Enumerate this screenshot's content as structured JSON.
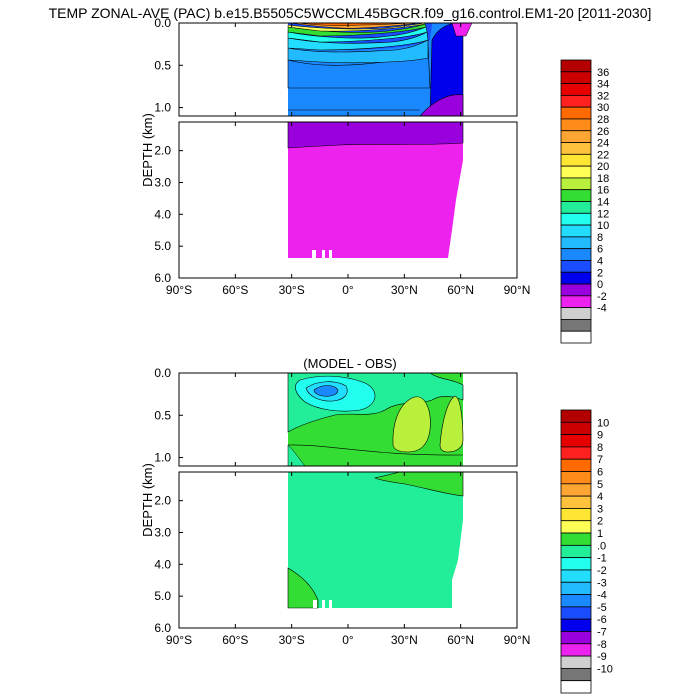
{
  "title": "TEMP ZONAL-AVE (PAC) b.e15.B5505C5WCCML45BGCR.f09_g16.control.EM1-20 [2011-2030]",
  "chart_data": [
    {
      "type": "contour",
      "title": "",
      "ylabel": "DEPTH (km)",
      "x_ticks": [
        "90°S",
        "60°S",
        "30°S",
        "0°",
        "30°N",
        "60°N",
        "90°N"
      ],
      "x_tick_values": [
        -90,
        -60,
        -30,
        0,
        30,
        60,
        90
      ],
      "y_ticks_upper": [
        "0.0",
        "0.5",
        "1.0"
      ],
      "y_ticks_upper_values": [
        0.0,
        0.5,
        1.0
      ],
      "y_ticks_lower": [
        "2.0",
        "3.0",
        "4.0",
        "5.0",
        "6.0"
      ],
      "y_ticks_lower_values": [
        2.0,
        3.0,
        4.0,
        5.0,
        6.0
      ],
      "xlim": [
        -90,
        90
      ],
      "ylim_upper": [
        0.0,
        1.1
      ],
      "ylim_lower": [
        1.1,
        6.0
      ],
      "colorbar_labels": [
        "36",
        "34",
        "32",
        "30",
        "28",
        "26",
        "24",
        "22",
        "20",
        "18",
        "16",
        "14",
        "12",
        "10",
        "8",
        "6",
        "4",
        "2",
        "0",
        "-2",
        "-4"
      ],
      "colorbar_colors": [
        "#b30000",
        "#cc0000",
        "#e60000",
        "#ff2020",
        "#ff6a00",
        "#ff8c1a",
        "#ffa533",
        "#ffc23d",
        "#ffe633",
        "#ffff55",
        "#b8f03c",
        "#33dd33",
        "#22ee99",
        "#22ffee",
        "#22ddff",
        "#22bbff",
        "#1a88ff",
        "#1a4dff",
        "#0000ee",
        "#9900dd",
        "#ee22ee",
        "#cfcfcf",
        "#777777",
        "#ffffff"
      ]
    },
    {
      "type": "contour",
      "title": "(MODEL - OBS)",
      "ylabel": "DEPTH (km)",
      "x_ticks": [
        "90°S",
        "60°S",
        "30°S",
        "0°",
        "30°N",
        "60°N",
        "90°N"
      ],
      "x_tick_values": [
        -90,
        -60,
        -30,
        0,
        30,
        60,
        90
      ],
      "y_ticks_upper": [
        "0.0",
        "0.5",
        "1.0"
      ],
      "y_ticks_upper_values": [
        0.0,
        0.5,
        1.0
      ],
      "y_ticks_lower": [
        "2.0",
        "3.0",
        "4.0",
        "5.0",
        "6.0"
      ],
      "y_ticks_lower_values": [
        2.0,
        3.0,
        4.0,
        5.0,
        6.0
      ],
      "xlim": [
        -90,
        90
      ],
      "ylim_upper": [
        0.0,
        1.1
      ],
      "ylim_lower": [
        1.1,
        6.0
      ],
      "colorbar_labels": [
        "10",
        "9",
        "8",
        "7",
        "6",
        "5",
        "4",
        "3",
        "2",
        "1",
        ".0",
        "-1",
        "-2",
        "-3",
        "-4",
        "-5",
        "-6",
        "-7",
        "-8",
        "-9",
        "-10"
      ],
      "colorbar_colors": [
        "#b30000",
        "#cc0000",
        "#e60000",
        "#ff2020",
        "#ff6a00",
        "#ff8c1a",
        "#ffa533",
        "#ffc23d",
        "#ffe633",
        "#ffff55",
        "#33dd33",
        "#22ee99",
        "#22ffee",
        "#22ddff",
        "#22bbff",
        "#1a88ff",
        "#1a4dff",
        "#0000ee",
        "#9900dd",
        "#ee22ee",
        "#cfcfcf",
        "#777777",
        "#ffffff"
      ]
    }
  ]
}
